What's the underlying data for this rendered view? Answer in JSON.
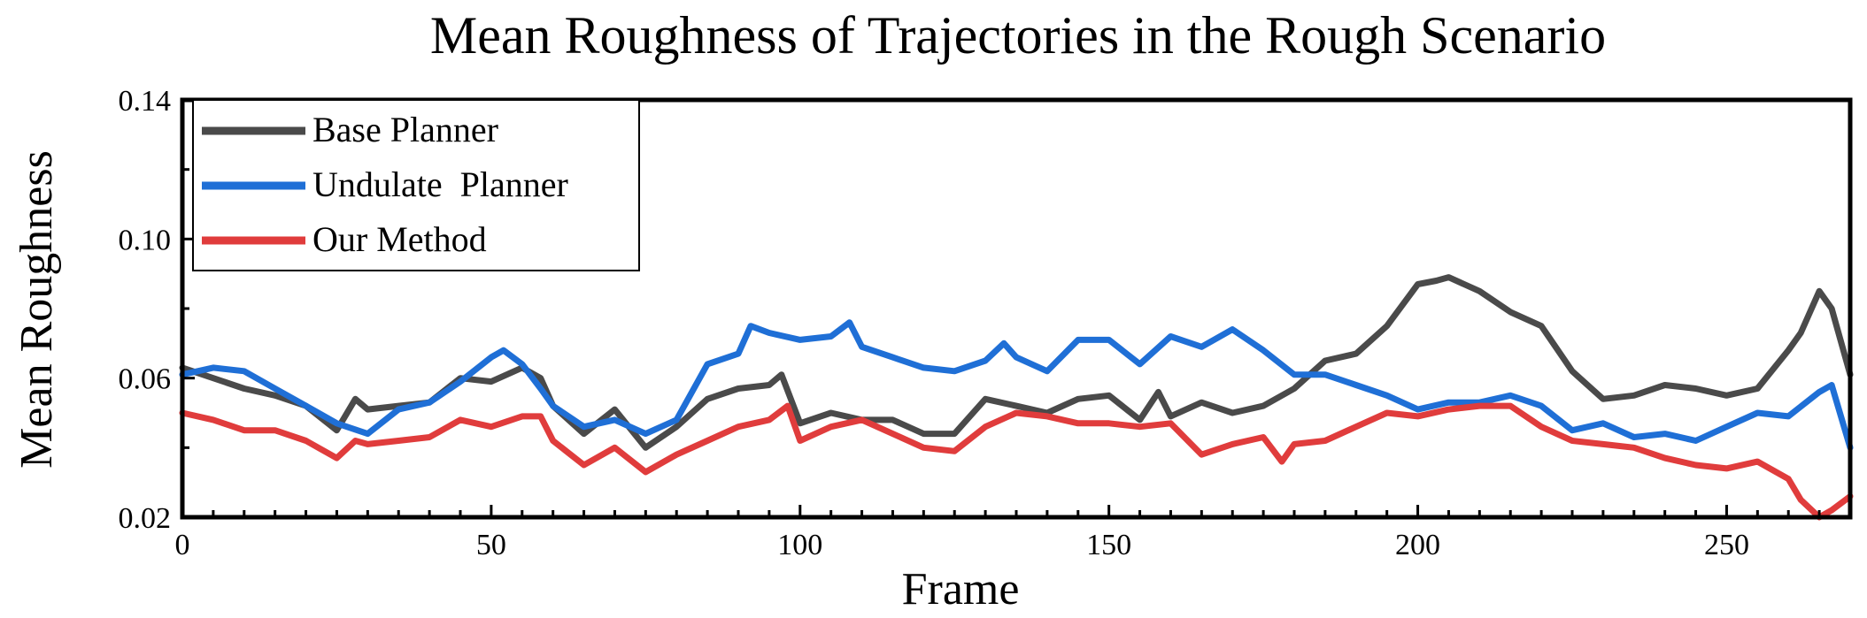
{
  "chart_data": {
    "type": "line",
    "title": "Mean Roughness of Trajectories in the Rough Scenario",
    "xlabel": "Frame",
    "ylabel": "Mean Roughness",
    "xlim": [
      0,
      270
    ],
    "ylim": [
      0.02,
      0.14
    ],
    "xticks": [
      0,
      50,
      100,
      150,
      200,
      250
    ],
    "yticks": [
      0.02,
      0.06,
      0.1,
      0.14
    ],
    "ytick_labels": [
      "0.02",
      "0.06",
      "0.10",
      "0.14"
    ],
    "legend_position": "top-left",
    "grid": false,
    "series": [
      {
        "name": "Base Planner",
        "color": "#4a4a4a",
        "x": [
          0,
          5,
          10,
          15,
          20,
          25,
          28,
          30,
          35,
          40,
          45,
          50,
          55,
          58,
          60,
          65,
          70,
          75,
          80,
          85,
          90,
          95,
          97,
          100,
          105,
          110,
          115,
          120,
          125,
          130,
          135,
          140,
          145,
          150,
          155,
          158,
          160,
          165,
          170,
          175,
          180,
          185,
          190,
          195,
          200,
          203,
          205,
          210,
          215,
          220,
          225,
          230,
          235,
          240,
          245,
          250,
          255,
          260,
          262,
          265,
          267,
          270
        ],
        "y": [
          0.063,
          0.06,
          0.057,
          0.055,
          0.052,
          0.045,
          0.054,
          0.051,
          0.052,
          0.053,
          0.06,
          0.059,
          0.063,
          0.06,
          0.052,
          0.044,
          0.051,
          0.04,
          0.046,
          0.054,
          0.057,
          0.058,
          0.061,
          0.047,
          0.05,
          0.048,
          0.048,
          0.044,
          0.044,
          0.054,
          0.052,
          0.05,
          0.054,
          0.055,
          0.048,
          0.056,
          0.049,
          0.053,
          0.05,
          0.052,
          0.057,
          0.065,
          0.067,
          0.075,
          0.087,
          0.088,
          0.089,
          0.085,
          0.079,
          0.075,
          0.062,
          0.054,
          0.055,
          0.058,
          0.057,
          0.055,
          0.057,
          0.068,
          0.073,
          0.085,
          0.08,
          0.061
        ]
      },
      {
        "name": "Undulate  Planner",
        "color": "#1f6fd6",
        "x": [
          0,
          5,
          10,
          15,
          20,
          25,
          30,
          35,
          40,
          45,
          50,
          52,
          55,
          58,
          60,
          65,
          70,
          75,
          80,
          85,
          90,
          92,
          95,
          100,
          105,
          108,
          110,
          115,
          120,
          125,
          130,
          133,
          135,
          140,
          145,
          150,
          155,
          160,
          165,
          170,
          175,
          180,
          185,
          190,
          195,
          200,
          205,
          210,
          215,
          220,
          225,
          230,
          235,
          240,
          245,
          250,
          255,
          260,
          265,
          267,
          270
        ],
        "y": [
          0.061,
          0.063,
          0.062,
          0.057,
          0.052,
          0.047,
          0.044,
          0.051,
          0.053,
          0.059,
          0.066,
          0.068,
          0.064,
          0.057,
          0.052,
          0.046,
          0.048,
          0.044,
          0.048,
          0.064,
          0.067,
          0.075,
          0.073,
          0.071,
          0.072,
          0.076,
          0.069,
          0.066,
          0.063,
          0.062,
          0.065,
          0.07,
          0.066,
          0.062,
          0.071,
          0.071,
          0.064,
          0.072,
          0.069,
          0.074,
          0.068,
          0.061,
          0.061,
          0.058,
          0.055,
          0.051,
          0.053,
          0.053,
          0.055,
          0.052,
          0.045,
          0.047,
          0.043,
          0.044,
          0.042,
          0.046,
          0.05,
          0.049,
          0.056,
          0.058,
          0.04
        ]
      },
      {
        "name": "Our Method",
        "color": "#e03c3c",
        "x": [
          0,
          5,
          10,
          15,
          20,
          25,
          28,
          30,
          35,
          40,
          45,
          50,
          55,
          58,
          60,
          65,
          70,
          75,
          80,
          85,
          90,
          95,
          98,
          100,
          105,
          110,
          115,
          120,
          125,
          130,
          135,
          140,
          145,
          150,
          155,
          160,
          165,
          170,
          175,
          178,
          180,
          185,
          190,
          195,
          200,
          205,
          210,
          215,
          220,
          225,
          230,
          235,
          240,
          245,
          250,
          255,
          260,
          262,
          265,
          267,
          270
        ],
        "y": [
          0.05,
          0.048,
          0.045,
          0.045,
          0.042,
          0.037,
          0.042,
          0.041,
          0.042,
          0.043,
          0.048,
          0.046,
          0.049,
          0.049,
          0.042,
          0.035,
          0.04,
          0.033,
          0.038,
          0.042,
          0.046,
          0.048,
          0.052,
          0.042,
          0.046,
          0.048,
          0.044,
          0.04,
          0.039,
          0.046,
          0.05,
          0.049,
          0.047,
          0.047,
          0.046,
          0.047,
          0.038,
          0.041,
          0.043,
          0.036,
          0.041,
          0.042,
          0.046,
          0.05,
          0.049,
          0.051,
          0.052,
          0.052,
          0.046,
          0.042,
          0.041,
          0.04,
          0.037,
          0.035,
          0.034,
          0.036,
          0.031,
          0.025,
          0.02,
          0.022,
          0.026
        ]
      }
    ]
  }
}
